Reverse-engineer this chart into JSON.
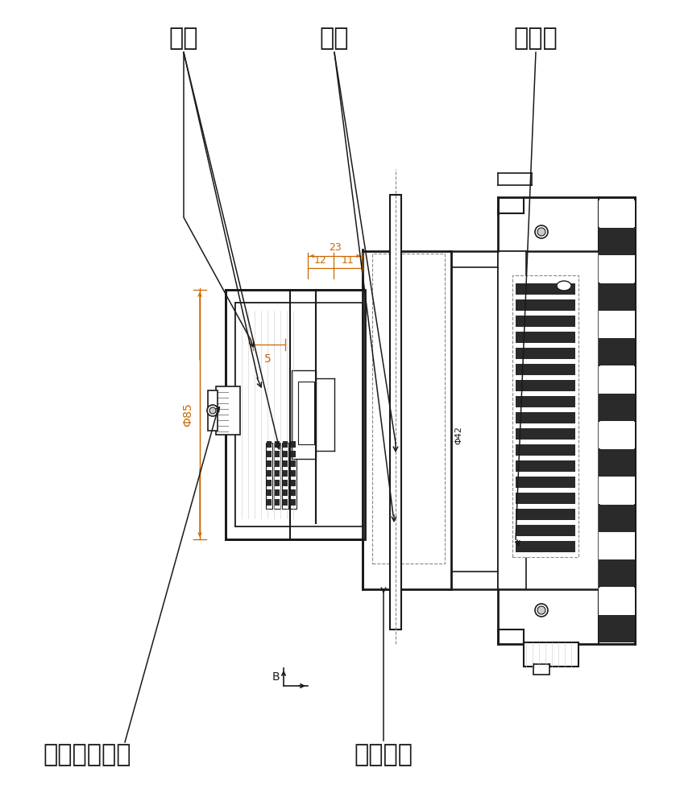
{
  "bg_color": "#ffffff",
  "lc": "#1a1a1a",
  "dc": "#cc6600",
  "gc": "#888888",
  "fcd": "#2a2a2a",
  "fcm": "#666666",
  "fcl": "#cccccc",
  "labels": {
    "ci_huan": "磁环",
    "zhuan_zhou": "转轴",
    "hou_duan_gai": "后端盖",
    "ci_huan_gd_ls": "磁环固定螺钉",
    "ci_huan_yb": "磁环压板"
  },
  "font_size_label": 22,
  "font_size_dim": 10
}
